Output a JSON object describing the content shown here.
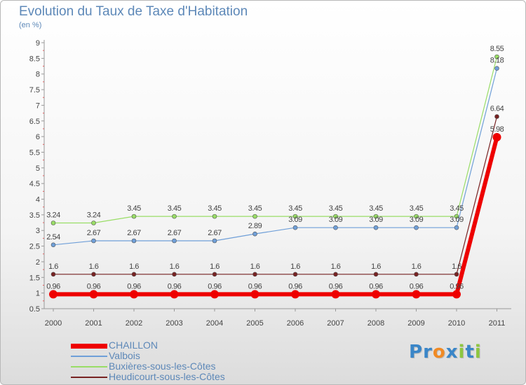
{
  "title": "Evolution du Taux de Taxe d'Habitation",
  "unit": "(en %)",
  "brand": {
    "text": "Proxiti",
    "letters": [
      {
        "ch": "P",
        "color": "#3a86c8"
      },
      {
        "ch": "r",
        "color": "#3a86c8"
      },
      {
        "ch": "o",
        "color": "#f08a24"
      },
      {
        "ch": "x",
        "color": "#3a86c8"
      },
      {
        "ch": "i",
        "color": "#8dc63f"
      },
      {
        "ch": "t",
        "color": "#3a86c8"
      },
      {
        "ch": "i",
        "color": "#8dc63f"
      }
    ]
  },
  "chart_data": {
    "type": "line",
    "categories": [
      "2000",
      "2001",
      "2002",
      "2003",
      "2004",
      "2005",
      "2006",
      "2007",
      "2008",
      "2009",
      "2010",
      "2011"
    ],
    "ylim": [
      0.5,
      9
    ],
    "yticks": [
      "0.5",
      "1",
      "1.5",
      "2",
      "2.5",
      "3",
      "3.5",
      "4",
      "4.5",
      "5",
      "5.5",
      "6",
      "6.5",
      "7",
      "7.5",
      "8",
      "8.5",
      "9"
    ],
    "grid": false,
    "legend_position": "bottom-left",
    "series": [
      {
        "name": "CHAILLON",
        "color": "#ee0000",
        "width": 6,
        "marker": 6,
        "values": [
          0.96,
          0.96,
          0.96,
          0.96,
          0.96,
          0.96,
          0.96,
          0.96,
          0.96,
          0.96,
          0.96,
          5.98
        ],
        "labels": [
          "0.96",
          "0.96",
          "0.96",
          "0.96",
          "0.96",
          "0.96",
          "0.96",
          "0.96",
          "0.96",
          "0.96",
          "0.96",
          "5.98"
        ]
      },
      {
        "name": "Valbois",
        "color": "#6f9fd8",
        "width": 1,
        "marker": 3,
        "values": [
          2.54,
          2.67,
          2.67,
          2.67,
          2.67,
          2.89,
          3.09,
          3.09,
          3.09,
          3.09,
          3.09,
          8.18
        ],
        "labels": [
          "2.54",
          "2.67",
          "2.67",
          "2.67",
          "2.67",
          "2.89",
          "3.09",
          "3.09",
          "3.09",
          "3.09",
          "3.09",
          "8.18"
        ]
      },
      {
        "name": "Buxières-sous-les-Côtes",
        "color": "#99dd66",
        "width": 1,
        "marker": 3,
        "values": [
          3.24,
          3.24,
          3.45,
          3.45,
          3.45,
          3.45,
          3.45,
          3.45,
          3.45,
          3.45,
          3.45,
          8.55
        ],
        "labels": [
          "3.24",
          "3.24",
          "3.45",
          "3.45",
          "3.45",
          "3.45",
          "3.45",
          "3.45",
          "3.45",
          "3.45",
          "3.45",
          "8.55"
        ]
      },
      {
        "name": "Heudicourt-sous-les-Côtes",
        "color": "#772222",
        "width": 1,
        "marker": 3,
        "values": [
          1.6,
          1.6,
          1.6,
          1.6,
          1.6,
          1.6,
          1.6,
          1.6,
          1.6,
          1.6,
          1.6,
          6.64
        ],
        "labels": [
          "1.6",
          "1.6",
          "1.6",
          "1.6",
          "1.6",
          "1.6",
          "1.6",
          "1.6",
          "1.6",
          "1.6",
          "1.6",
          "6.64"
        ]
      }
    ]
  }
}
